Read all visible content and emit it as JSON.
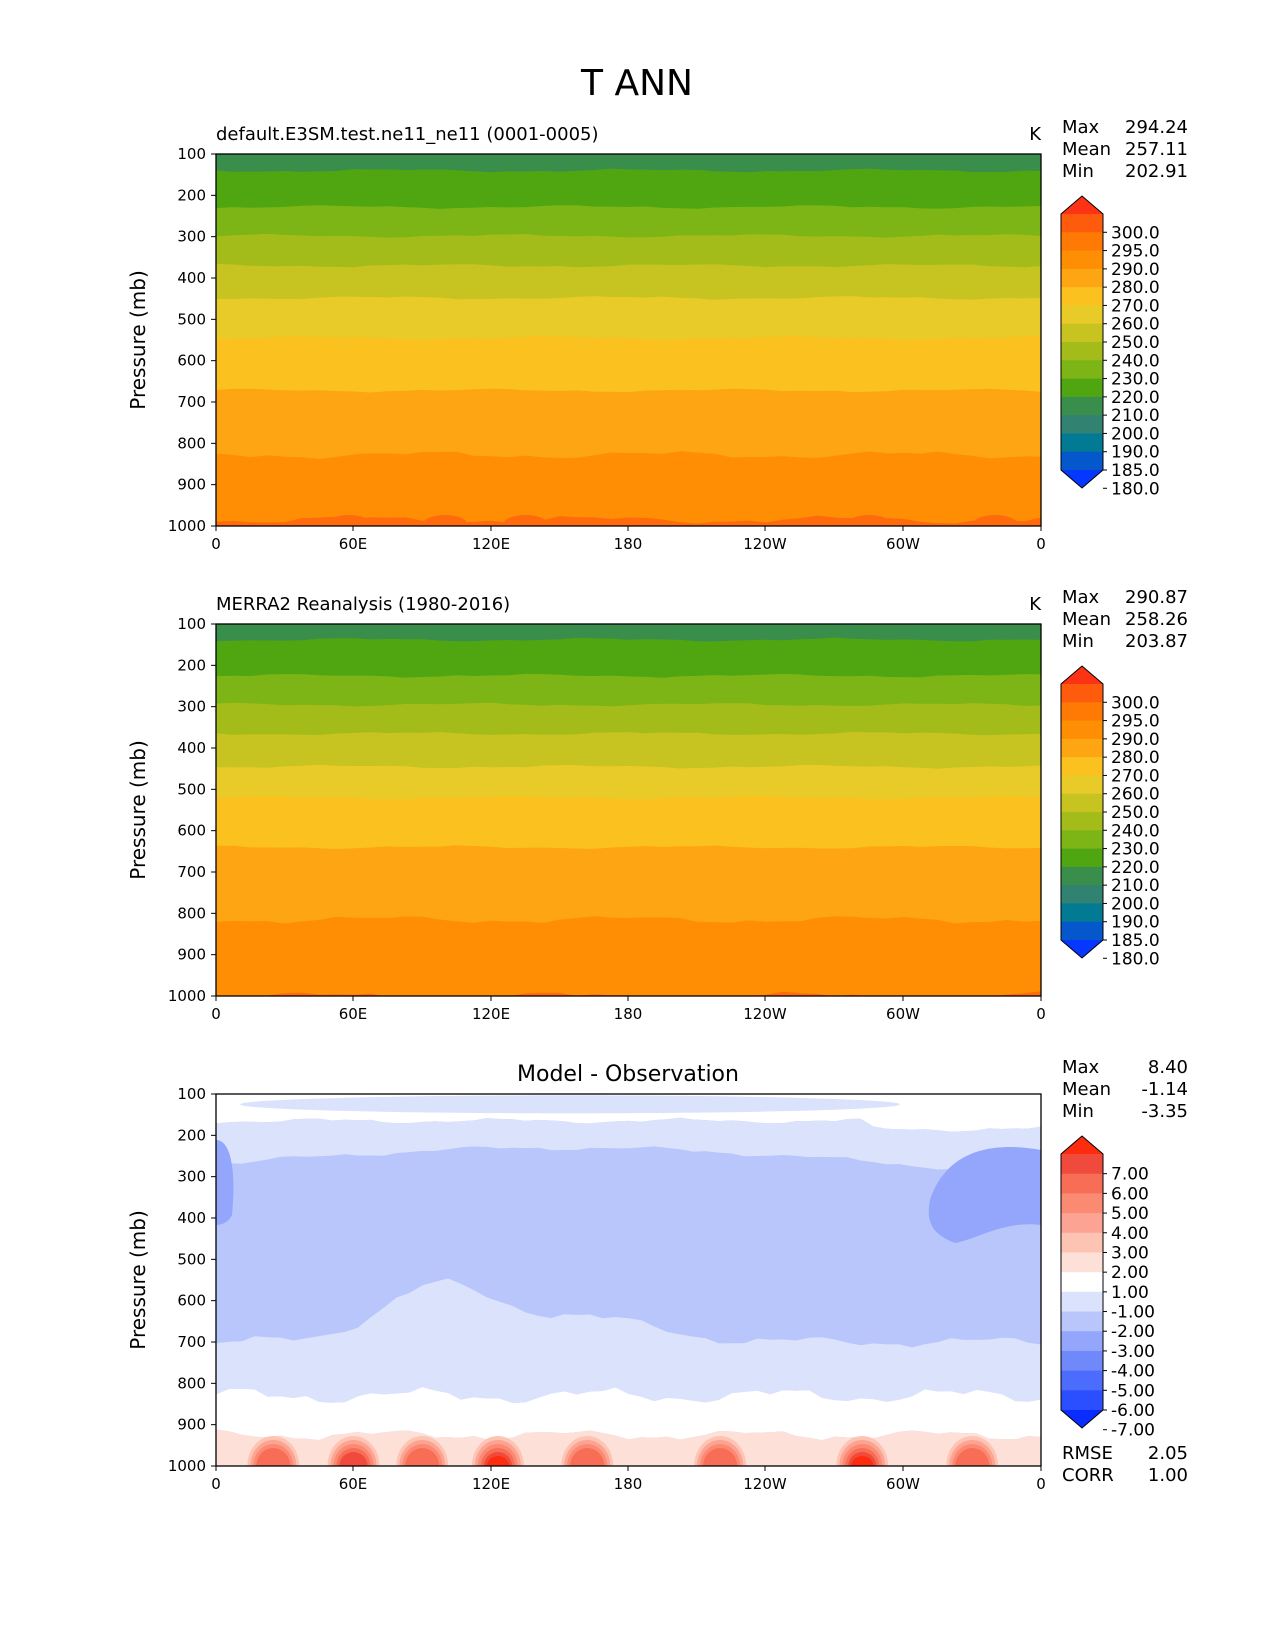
{
  "title": "T ANN",
  "chart_data": [
    {
      "type": "heatmap",
      "title": "default.E3SM.test.ne11_ne11 (0001-0005)",
      "units": "K",
      "xlabel": "",
      "ylabel": "Pressure (mb)",
      "x_ticks": [
        "0",
        "60E",
        "120E",
        "180",
        "120W",
        "60W",
        "0"
      ],
      "y_ticks": [
        "100",
        "200",
        "300",
        "400",
        "500",
        "600",
        "700",
        "800",
        "900",
        "1000"
      ],
      "ylim": [
        100,
        1000
      ],
      "stats": [
        {
          "label": "Max",
          "value": "294.24"
        },
        {
          "label": "Mean",
          "value": "257.11"
        },
        {
          "label": "Min",
          "value": "202.91"
        }
      ],
      "colorbar": {
        "labels": [
          "300.0",
          "295.0",
          "290.0",
          "280.0",
          "270.0",
          "260.0",
          "250.0",
          "240.0",
          "230.0",
          "220.0",
          "210.0",
          "200.0",
          "190.0",
          "185.0",
          "180.0"
        ],
        "colors": [
          "#fe3316",
          "#fe5c0c",
          "#ff7a04",
          "#fe8e04",
          "#fda513",
          "#fbc11e",
          "#e8cb28",
          "#c7c320",
          "#a4bc19",
          "#7db416",
          "#4fa611",
          "#3a8e4b",
          "#328272",
          "#037a93",
          "#0557cc",
          "#0637fe"
        ]
      },
      "field": {
        "levels": [
          200,
          210,
          220,
          230,
          240,
          250,
          260,
          270,
          280,
          290
        ],
        "level_colors": [
          "#3a8e4b",
          "#4fa611",
          "#7db416",
          "#a4bc19",
          "#c7c320",
          "#e8cb28",
          "#fbc11e",
          "#fda513",
          "#ff8e04",
          "#fe7a04",
          "#fe6a0c"
        ],
        "band_depth_mb": [
          140,
          228,
          298,
          370,
          448,
          545,
          672,
          828,
          985
        ],
        "warm_patches": [
          {
            "lon": 58,
            "value": 292
          },
          {
            "lon": 100,
            "value": 292
          },
          {
            "lon": 135,
            "value": 292
          },
          {
            "lon": 285,
            "value": 293
          },
          {
            "lon": 340,
            "value": 292
          }
        ]
      }
    },
    {
      "type": "heatmap",
      "title": "MERRA2 Reanalysis (1980-2016)",
      "units": "K",
      "xlabel": "",
      "ylabel": "Pressure (mb)",
      "x_ticks": [
        "0",
        "60E",
        "120E",
        "180",
        "120W",
        "60W",
        "0"
      ],
      "y_ticks": [
        "100",
        "200",
        "300",
        "400",
        "500",
        "600",
        "700",
        "800",
        "900",
        "1000"
      ],
      "ylim": [
        100,
        1000
      ],
      "stats": [
        {
          "label": "Max",
          "value": "290.87"
        },
        {
          "label": "Mean",
          "value": "258.26"
        },
        {
          "label": "Min",
          "value": "203.87"
        }
      ],
      "colorbar": {
        "labels": [
          "300.0",
          "295.0",
          "290.0",
          "280.0",
          "270.0",
          "260.0",
          "250.0",
          "240.0",
          "230.0",
          "220.0",
          "210.0",
          "200.0",
          "190.0",
          "185.0",
          "180.0"
        ],
        "colors": [
          "#fe3316",
          "#fe5c0c",
          "#ff7a04",
          "#fe8e04",
          "#fda513",
          "#fbc11e",
          "#e8cb28",
          "#c7c320",
          "#a4bc19",
          "#7db416",
          "#4fa611",
          "#3a8e4b",
          "#328272",
          "#037a93",
          "#0557cc",
          "#0637fe"
        ]
      },
      "field": {
        "levels": [
          200,
          210,
          220,
          230,
          240,
          250,
          260,
          270,
          280,
          290
        ],
        "level_colors": [
          "#3a8e4b",
          "#4fa611",
          "#7db416",
          "#a4bc19",
          "#c7c320",
          "#e8cb28",
          "#fbc11e",
          "#fda513",
          "#ff8e04",
          "#fe7a04",
          "#fe6a0c"
        ],
        "band_depth_mb": [
          138,
          225,
          295,
          365,
          445,
          520,
          640,
          815,
          1000
        ],
        "warm_patches": []
      }
    },
    {
      "type": "heatmap",
      "title": "Model - Observation",
      "units": "",
      "xlabel": "",
      "ylabel": "Pressure (mb)",
      "x_ticks": [
        "0",
        "60E",
        "120E",
        "180",
        "120W",
        "60W",
        "0"
      ],
      "y_ticks": [
        "100",
        "200",
        "300",
        "400",
        "500",
        "600",
        "700",
        "800",
        "900",
        "1000"
      ],
      "ylim": [
        100,
        1000
      ],
      "stats": [
        {
          "label": "Max",
          "value": "8.40"
        },
        {
          "label": "Mean",
          "value": "-1.14"
        },
        {
          "label": "Min",
          "value": "-3.35"
        }
      ],
      "extra_stats": [
        {
          "label": "RMSE",
          "value": "2.05"
        },
        {
          "label": "CORR",
          "value": "1.00"
        }
      ],
      "colorbar": {
        "labels": [
          "7.00",
          "6.00",
          "5.00",
          "4.00",
          "3.00",
          "2.00",
          "1.00",
          "-1.00",
          "-2.00",
          "-3.00",
          "-4.00",
          "-5.00",
          "-6.00",
          "-7.00"
        ],
        "colors": [
          "#fe2c0e",
          "#ef4a3c",
          "#f86d56",
          "#fb8a72",
          "#fca393",
          "#fdc4b4",
          "#fde0d7",
          "#ffffff",
          "#dbe2fb",
          "#b9c6fc",
          "#93a6fb",
          "#7089fa",
          "#4c6cfd",
          "#2b4ffe",
          "#0b2cfe"
        ]
      },
      "field": {
        "regions": [
          {
            "name": "upper-white",
            "value": -0.5
          },
          {
            "name": "upper-light",
            "value": -1.5
          },
          {
            "name": "mid-blue",
            "value": -2.5
          },
          {
            "name": "dark-blue-west",
            "value": -3.2
          },
          {
            "name": "dark-blue-east",
            "value": -3.3
          },
          {
            "name": "lower-light",
            "value": -1.5
          },
          {
            "name": "near-surface-white",
            "value": 0.0
          },
          {
            "name": "surface-warm",
            "value": 3.0
          },
          {
            "name": "warm-peak",
            "value": 8.4
          }
        ],
        "warm_peaks": [
          {
            "lon": 25,
            "value": 4
          },
          {
            "lon": 60,
            "value": 5
          },
          {
            "lon": 90,
            "value": 4
          },
          {
            "lon": 123,
            "value": 6
          },
          {
            "lon": 162,
            "value": 4
          },
          {
            "lon": 220,
            "value": 4
          },
          {
            "lon": 282,
            "value": 8.4
          },
          {
            "lon": 330,
            "value": 4
          }
        ]
      }
    }
  ]
}
